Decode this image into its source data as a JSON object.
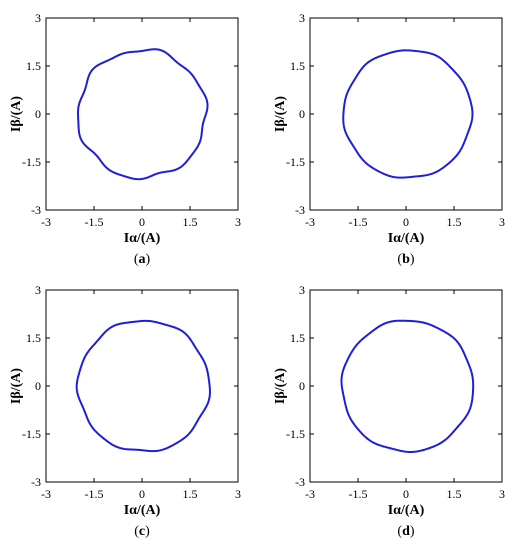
{
  "chart_data": [
    {
      "type": "line",
      "panel_label": "a",
      "xlabel": "Iα/(A)",
      "ylabel": "Iβ/(A)",
      "xlim": [
        -3,
        3
      ],
      "ylim": [
        -3,
        3
      ],
      "xticks": [
        "-3",
        "-1.5",
        "0",
        "1.5",
        "3"
      ],
      "yticks": [
        "-3",
        "-1.5",
        "0",
        "1.5",
        "3"
      ],
      "grid": false,
      "color": "#1f1fd6",
      "series": [
        {
          "shape": "circle",
          "center": [
            0,
            0
          ],
          "radius": 2.0,
          "ripple": 0.05
        }
      ]
    },
    {
      "type": "line",
      "panel_label": "b",
      "xlabel": "Iα/(A)",
      "ylabel": "Iβ/(A)",
      "xlim": [
        -3,
        3
      ],
      "ylim": [
        -3,
        3
      ],
      "xticks": [
        "-3",
        "-1.5",
        "0",
        "1.5",
        "3"
      ],
      "yticks": [
        "-3",
        "-1.5",
        "0",
        "1.5",
        "3"
      ],
      "grid": false,
      "color": "#1f1fd6",
      "series": [
        {
          "shape": "circle",
          "center": [
            0.05,
            0
          ],
          "radius": 2.0,
          "ripple": 0.02
        }
      ]
    },
    {
      "type": "line",
      "panel_label": "c",
      "xlabel": "Iα/(A)",
      "ylabel": "Iβ/(A)",
      "xlim": [
        -3,
        3
      ],
      "ylim": [
        -3,
        3
      ],
      "xticks": [
        "-3",
        "-1.5",
        "0",
        "1.5",
        "3"
      ],
      "yticks": [
        "-3",
        "-1.5",
        "0",
        "1.5",
        "3"
      ],
      "grid": false,
      "color": "#1f1fd6",
      "series": [
        {
          "shape": "circle",
          "center": [
            0.05,
            0
          ],
          "radius": 2.05,
          "ripple": 0.03
        }
      ]
    },
    {
      "type": "line",
      "panel_label": "d",
      "xlabel": "Iα/(A)",
      "ylabel": "Iβ/(A)",
      "xlim": [
        -3,
        3
      ],
      "ylim": [
        -3,
        3
      ],
      "xticks": [
        "-3",
        "-1.5",
        "0",
        "1.5",
        "3"
      ],
      "yticks": [
        "-3",
        "-1.5",
        "0",
        "1.5",
        "3"
      ],
      "grid": false,
      "color": "#1f1fd6",
      "series": [
        {
          "shape": "circle",
          "center": [
            0.05,
            0
          ],
          "radius": 2.05,
          "ripple": 0.02
        }
      ]
    }
  ]
}
